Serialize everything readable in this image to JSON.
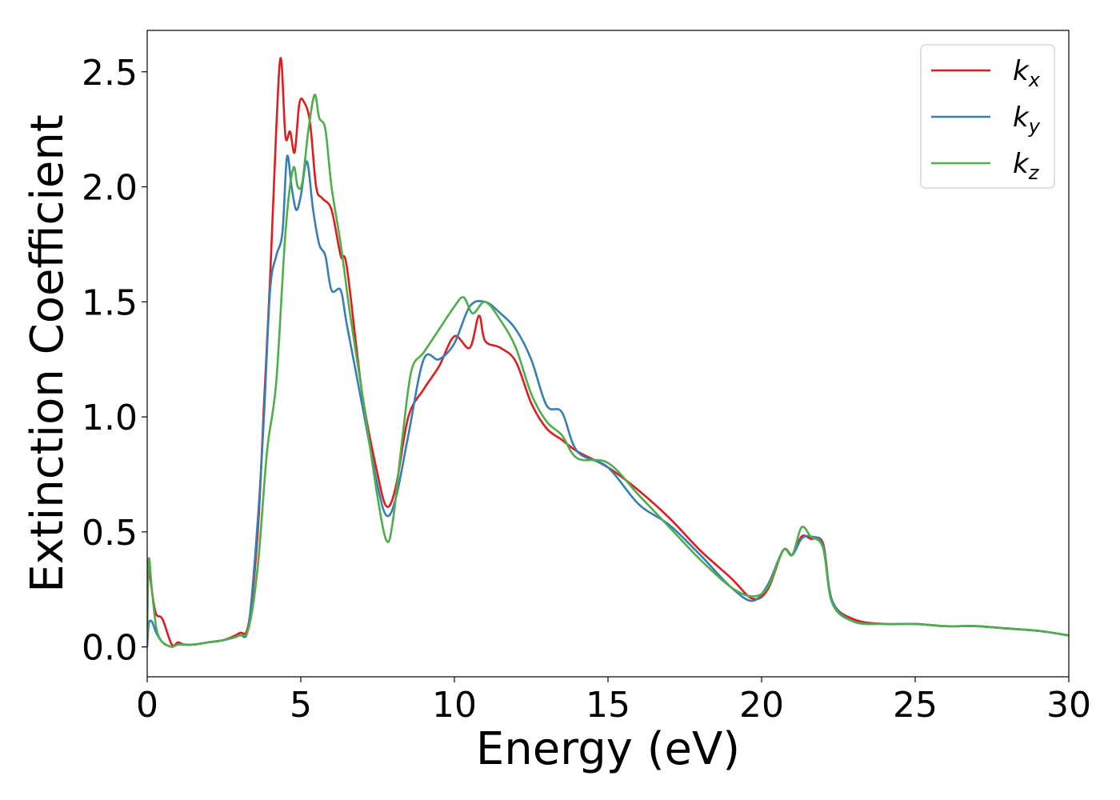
{
  "chart_data": {
    "type": "line",
    "title": "",
    "xlabel": "Energy (eV)",
    "ylabel": "Extinction Coefficient",
    "xlim": [
      0,
      30
    ],
    "ylim": [
      -0.13,
      2.68
    ],
    "xticks": [
      0,
      5,
      10,
      15,
      20,
      25,
      30
    ],
    "xtick_labels": [
      "0",
      "5",
      "10",
      "15",
      "20",
      "25",
      "30"
    ],
    "yticks": [
      0.0,
      0.5,
      1.0,
      1.5,
      2.0,
      2.5
    ],
    "ytick_labels": [
      "0.0",
      "0.5",
      "1.0",
      "1.5",
      "2.0",
      "2.5"
    ],
    "grid": false,
    "legend": "top-right",
    "series": [
      {
        "name": "k",
        "subscript": "x",
        "color": "#e41a1c",
        "x": [
          0,
          0.05,
          0.2,
          0.3,
          0.5,
          0.8,
          1.0,
          1.2,
          1.5,
          2.0,
          2.5,
          3.0,
          3.3,
          3.6,
          3.8,
          4.0,
          4.2,
          4.35,
          4.5,
          4.65,
          4.8,
          4.95,
          5.1,
          5.3,
          5.5,
          5.7,
          6.0,
          6.3,
          6.5,
          7.0,
          7.5,
          7.8,
          8.1,
          8.5,
          9.0,
          9.5,
          10.0,
          10.5,
          10.8,
          11.0,
          11.5,
          12.0,
          12.5,
          13.0,
          13.5,
          14.0,
          15.0,
          16.0,
          17.0,
          18.0,
          19.0,
          19.7,
          20.2,
          20.7,
          21.0,
          21.3,
          21.6,
          22.0,
          22.3,
          23.0,
          24.0,
          25.0,
          26.0,
          27.0,
          28.0,
          29.0,
          30.0
        ],
        "y": [
          0.38,
          0.35,
          0.2,
          0.14,
          0.12,
          0.01,
          0.02,
          0.01,
          0.01,
          0.02,
          0.03,
          0.06,
          0.1,
          0.5,
          1.05,
          1.6,
          2.25,
          2.56,
          2.22,
          2.24,
          2.15,
          2.36,
          2.37,
          2.28,
          2.0,
          1.95,
          1.9,
          1.7,
          1.65,
          1.1,
          0.75,
          0.61,
          0.7,
          1.0,
          1.12,
          1.22,
          1.35,
          1.3,
          1.44,
          1.33,
          1.3,
          1.24,
          1.06,
          0.95,
          0.9,
          0.85,
          0.78,
          0.68,
          0.56,
          0.42,
          0.3,
          0.21,
          0.25,
          0.42,
          0.4,
          0.48,
          0.47,
          0.45,
          0.2,
          0.12,
          0.1,
          0.1,
          0.09,
          0.09,
          0.08,
          0.07,
          0.05
        ]
      },
      {
        "name": "k",
        "subscript": "y",
        "color": "#377eb8",
        "x": [
          0,
          0.05,
          0.15,
          0.3,
          0.5,
          0.8,
          1.0,
          1.5,
          2.0,
          2.5,
          3.0,
          3.3,
          3.6,
          3.8,
          4.0,
          4.2,
          4.4,
          4.55,
          4.7,
          4.85,
          5.0,
          5.2,
          5.4,
          5.6,
          5.8,
          6.0,
          6.3,
          6.5,
          7.0,
          7.5,
          7.8,
          8.1,
          8.5,
          9.0,
          9.5,
          10.0,
          10.5,
          11.0,
          11.5,
          12.0,
          12.5,
          13.0,
          13.5,
          14.0,
          15.0,
          16.0,
          17.0,
          18.0,
          19.0,
          19.7,
          20.2,
          20.7,
          21.0,
          21.3,
          21.6,
          22.0,
          22.3,
          23.0,
          24.0,
          25.0,
          26.0,
          27.0,
          28.0,
          29.0,
          30.0
        ],
        "y": [
          0.0,
          0.1,
          0.11,
          0.06,
          0.02,
          0.0,
          0.01,
          0.01,
          0.02,
          0.03,
          0.05,
          0.09,
          0.55,
          1.0,
          1.55,
          1.7,
          1.8,
          2.13,
          2.0,
          1.9,
          1.96,
          2.11,
          1.9,
          1.75,
          1.7,
          1.55,
          1.55,
          1.4,
          1.05,
          0.7,
          0.57,
          0.65,
          0.92,
          1.25,
          1.25,
          1.32,
          1.48,
          1.5,
          1.45,
          1.38,
          1.25,
          1.05,
          1.02,
          0.85,
          0.78,
          0.62,
          0.53,
          0.4,
          0.26,
          0.2,
          0.27,
          0.42,
          0.4,
          0.47,
          0.48,
          0.44,
          0.2,
          0.11,
          0.1,
          0.1,
          0.09,
          0.09,
          0.08,
          0.07,
          0.05
        ]
      },
      {
        "name": "k",
        "subscript": "z",
        "color": "#4daf4a",
        "x": [
          0,
          0.05,
          0.15,
          0.3,
          0.5,
          0.8,
          1.0,
          1.5,
          2.0,
          2.5,
          3.0,
          3.3,
          3.6,
          3.9,
          4.2,
          4.5,
          4.75,
          4.9,
          5.05,
          5.25,
          5.45,
          5.6,
          5.8,
          6.0,
          6.3,
          6.6,
          7.0,
          7.5,
          7.8,
          8.0,
          8.3,
          8.6,
          9.0,
          9.5,
          10.0,
          10.3,
          10.6,
          11.0,
          11.5,
          12.0,
          12.5,
          13.0,
          13.5,
          14.0,
          15.0,
          16.0,
          17.0,
          18.0,
          19.0,
          19.7,
          20.2,
          20.7,
          21.0,
          21.3,
          21.6,
          22.0,
          22.3,
          23.0,
          24.0,
          25.0,
          26.0,
          27.0,
          28.0,
          29.0,
          30.0
        ],
        "y": [
          0.05,
          0.38,
          0.25,
          0.08,
          0.02,
          0.0,
          0.01,
          0.01,
          0.02,
          0.03,
          0.05,
          0.08,
          0.35,
          0.85,
          1.15,
          1.8,
          2.08,
          2.0,
          2.02,
          2.25,
          2.4,
          2.3,
          2.25,
          2.0,
          1.75,
          1.45,
          1.1,
          0.65,
          0.46,
          0.55,
          0.9,
          1.2,
          1.28,
          1.38,
          1.48,
          1.52,
          1.45,
          1.5,
          1.42,
          1.3,
          1.1,
          0.98,
          0.92,
          0.82,
          0.8,
          0.66,
          0.52,
          0.38,
          0.26,
          0.22,
          0.26,
          0.42,
          0.4,
          0.52,
          0.48,
          0.43,
          0.19,
          0.11,
          0.1,
          0.1,
          0.09,
          0.09,
          0.08,
          0.07,
          0.05
        ]
      }
    ]
  }
}
